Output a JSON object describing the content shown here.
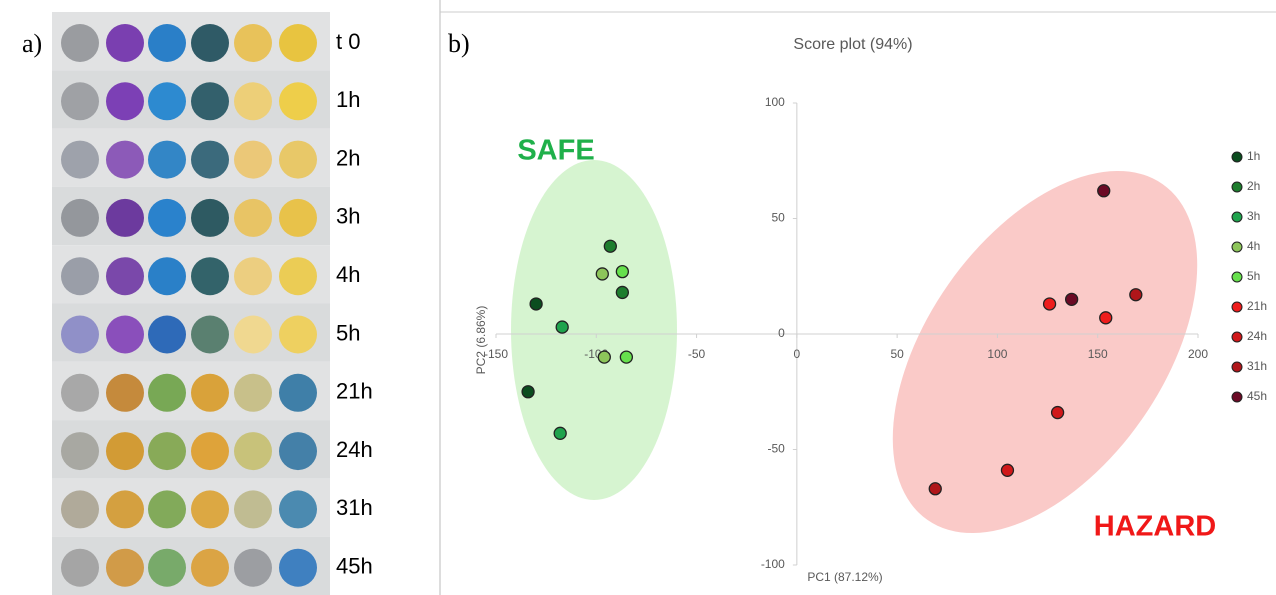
{
  "panel_a": {
    "label": "a)",
    "rows": [
      {
        "label": "t 0",
        "dots": [
          "#9a9ca0",
          "#7a3fb0",
          "#2a7fc8",
          "#2f5a66",
          "#e8c25a",
          "#e8c440"
        ]
      },
      {
        "label": "1h",
        "dots": [
          "#9fa1a5",
          "#7c40b5",
          "#2d8ad0",
          "#33606c",
          "#edcf78",
          "#eece4a"
        ]
      },
      {
        "label": "2h",
        "dots": [
          "#9ea2ab",
          "#8c5ab8",
          "#3386c6",
          "#3b6a7c",
          "#ebc878",
          "#e8c868"
        ]
      },
      {
        "label": "3h",
        "dots": [
          "#94979c",
          "#6c3a9e",
          "#2a82cc",
          "#2e5a62",
          "#e8c465",
          "#e8c24a"
        ]
      },
      {
        "label": "4h",
        "dots": [
          "#9a9ea8",
          "#7a48aa",
          "#2a80c8",
          "#33636a",
          "#ecce80",
          "#ebcc55"
        ]
      },
      {
        "label": "5h",
        "dots": [
          "#9090c8",
          "#8a4fbb",
          "#2e6ab8",
          "#5a8070",
          "#f0d890",
          "#eed060"
        ]
      },
      {
        "label": "21h",
        "dots": [
          "#a8a8a8",
          "#c58a3c",
          "#78a855",
          "#d9a23a",
          "#c8c08a",
          "#3f7fa8"
        ]
      },
      {
        "label": "24h",
        "dots": [
          "#a8a8a2",
          "#d29b35",
          "#88aa58",
          "#dea33a",
          "#c8c27a",
          "#4480a8"
        ]
      },
      {
        "label": "31h",
        "dots": [
          "#b0aa9a",
          "#d4a040",
          "#82aa5a",
          "#dca843",
          "#c0bc92",
          "#4b8ab0"
        ]
      },
      {
        "label": "45h",
        "dots": [
          "#a5a5a5",
          "#d19b48",
          "#78aa6a",
          "#dba444",
          "#9c9ea2",
          "#3f80c0"
        ]
      }
    ]
  },
  "panel_b_label": "b)",
  "chart_data": {
    "type": "scatter",
    "title": "Score plot (94%)",
    "x_label": "PC1 (87.12%)",
    "y_label": "PC2 (6.86%)",
    "annotations": [
      "SAFE",
      "HAZARD"
    ],
    "xlim": [
      -150,
      200
    ],
    "ylim": [
      -100,
      100
    ],
    "xticks": [
      -150,
      -100,
      -50,
      0,
      50,
      100,
      150,
      200
    ],
    "yticks": [
      -100,
      -50,
      0,
      50,
      100
    ],
    "grid": false,
    "legend": "right",
    "series": [
      {
        "name": "1h",
        "color": "#0b4d1f",
        "x": [
          -130,
          -134
        ],
        "values": [
          13,
          -25
        ]
      },
      {
        "name": "2h",
        "color": "#1e7d2e",
        "x": [
          -93,
          -87
        ],
        "values": [
          38,
          18
        ]
      },
      {
        "name": "3h",
        "color": "#1fa34d",
        "x": [
          -117,
          -118
        ],
        "values": [
          3,
          -43
        ]
      },
      {
        "name": "4h",
        "color": "#8dc55a",
        "x": [
          -97,
          -96
        ],
        "values": [
          26,
          -10
        ]
      },
      {
        "name": "5h",
        "color": "#66e04d",
        "x": [
          -87,
          -85
        ],
        "values": [
          27,
          -10
        ]
      },
      {
        "name": "21h",
        "color": "#ee1c1c",
        "x": [
          126,
          154
        ],
        "values": [
          13,
          7
        ]
      },
      {
        "name": "24h",
        "color": "#d0181a",
        "x": [
          130,
          105
        ],
        "values": [
          -34,
          -59
        ]
      },
      {
        "name": "31h",
        "color": "#b0161a",
        "x": [
          69,
          169
        ],
        "values": [
          -67,
          17
        ]
      },
      {
        "name": "45h",
        "color": "#6b0a25",
        "x": [
          153,
          137
        ],
        "values": [
          62,
          15
        ]
      }
    ]
  }
}
